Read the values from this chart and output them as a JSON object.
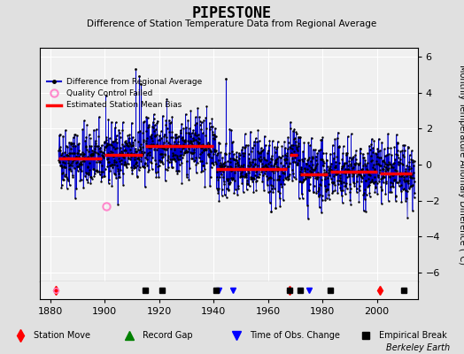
{
  "title": "PIPESTONE",
  "subtitle": "Difference of Station Temperature Data from Regional Average",
  "ylabel": "Monthly Temperature Anomaly Difference (°C)",
  "xlim": [
    1876,
    2015
  ],
  "ylim": [
    -6.5,
    6.5
  ],
  "yticks": [
    -6,
    -4,
    -2,
    0,
    2,
    4,
    6
  ],
  "xticks": [
    1880,
    1900,
    1920,
    1940,
    1960,
    1980,
    2000
  ],
  "bg_color": "#e0e0e0",
  "plot_bg_color": "#f0f0f0",
  "grid_color": "#ffffff",
  "line_color": "#0000cc",
  "marker_color": "#000000",
  "bias_color": "#ff0000",
  "qc_color": "#ff88cc",
  "seed": 42,
  "station_move_years": [
    1882,
    1968,
    2001
  ],
  "obs_change_years": [
    1942,
    1947,
    1975
  ],
  "empirical_break_years": [
    1915,
    1921,
    1941,
    1968,
    1972,
    1983,
    2010
  ],
  "qc_fail_years": [
    1900.5
  ],
  "qc_fail_values": [
    -2.3
  ],
  "segments": [
    {
      "start": 1883,
      "end": 1899,
      "bias": 0.35
    },
    {
      "start": 1900,
      "end": 1914,
      "bias": 0.55
    },
    {
      "start": 1915,
      "end": 1940,
      "bias": 1.05
    },
    {
      "start": 1941,
      "end": 1967,
      "bias": -0.25
    },
    {
      "start": 1968,
      "end": 1971,
      "bias": 0.55
    },
    {
      "start": 1972,
      "end": 1982,
      "bias": -0.55
    },
    {
      "start": 1983,
      "end": 2000,
      "bias": -0.4
    },
    {
      "start": 2001,
      "end": 2013,
      "bias": -0.5
    }
  ],
  "noise_std": 0.85,
  "tall_spike_positions": [
    {
      "year": 1911.2,
      "val": 5.3
    },
    {
      "year": 1912.5,
      "val": 4.9
    },
    {
      "year": 1913.1,
      "val": 4.5
    },
    {
      "year": 1944.5,
      "val": 4.8
    }
  ]
}
